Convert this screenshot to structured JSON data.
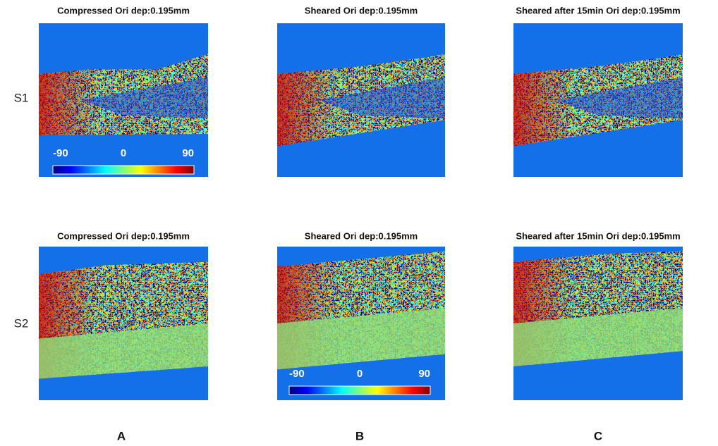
{
  "row_labels": [
    "S1",
    "S2"
  ],
  "column_labels": [
    "A",
    "B",
    "C"
  ],
  "panels": [
    {
      "title": "Compressed Ori dep:0.195mm"
    },
    {
      "title": "Sheared Ori dep:0.195mm"
    },
    {
      "title": "Sheared after 15min Ori dep:0.195mm"
    },
    {
      "title": "Compressed Ori dep:0.195mm"
    },
    {
      "title": "Sheared Ori dep:0.195mm"
    },
    {
      "title": "Sheared after 15min Ori dep:0.195mm"
    }
  ],
  "colorbars": [
    {
      "labels": [
        -90,
        0,
        90
      ]
    },
    {
      "labels": [
        -90,
        0,
        90
      ]
    }
  ]
}
